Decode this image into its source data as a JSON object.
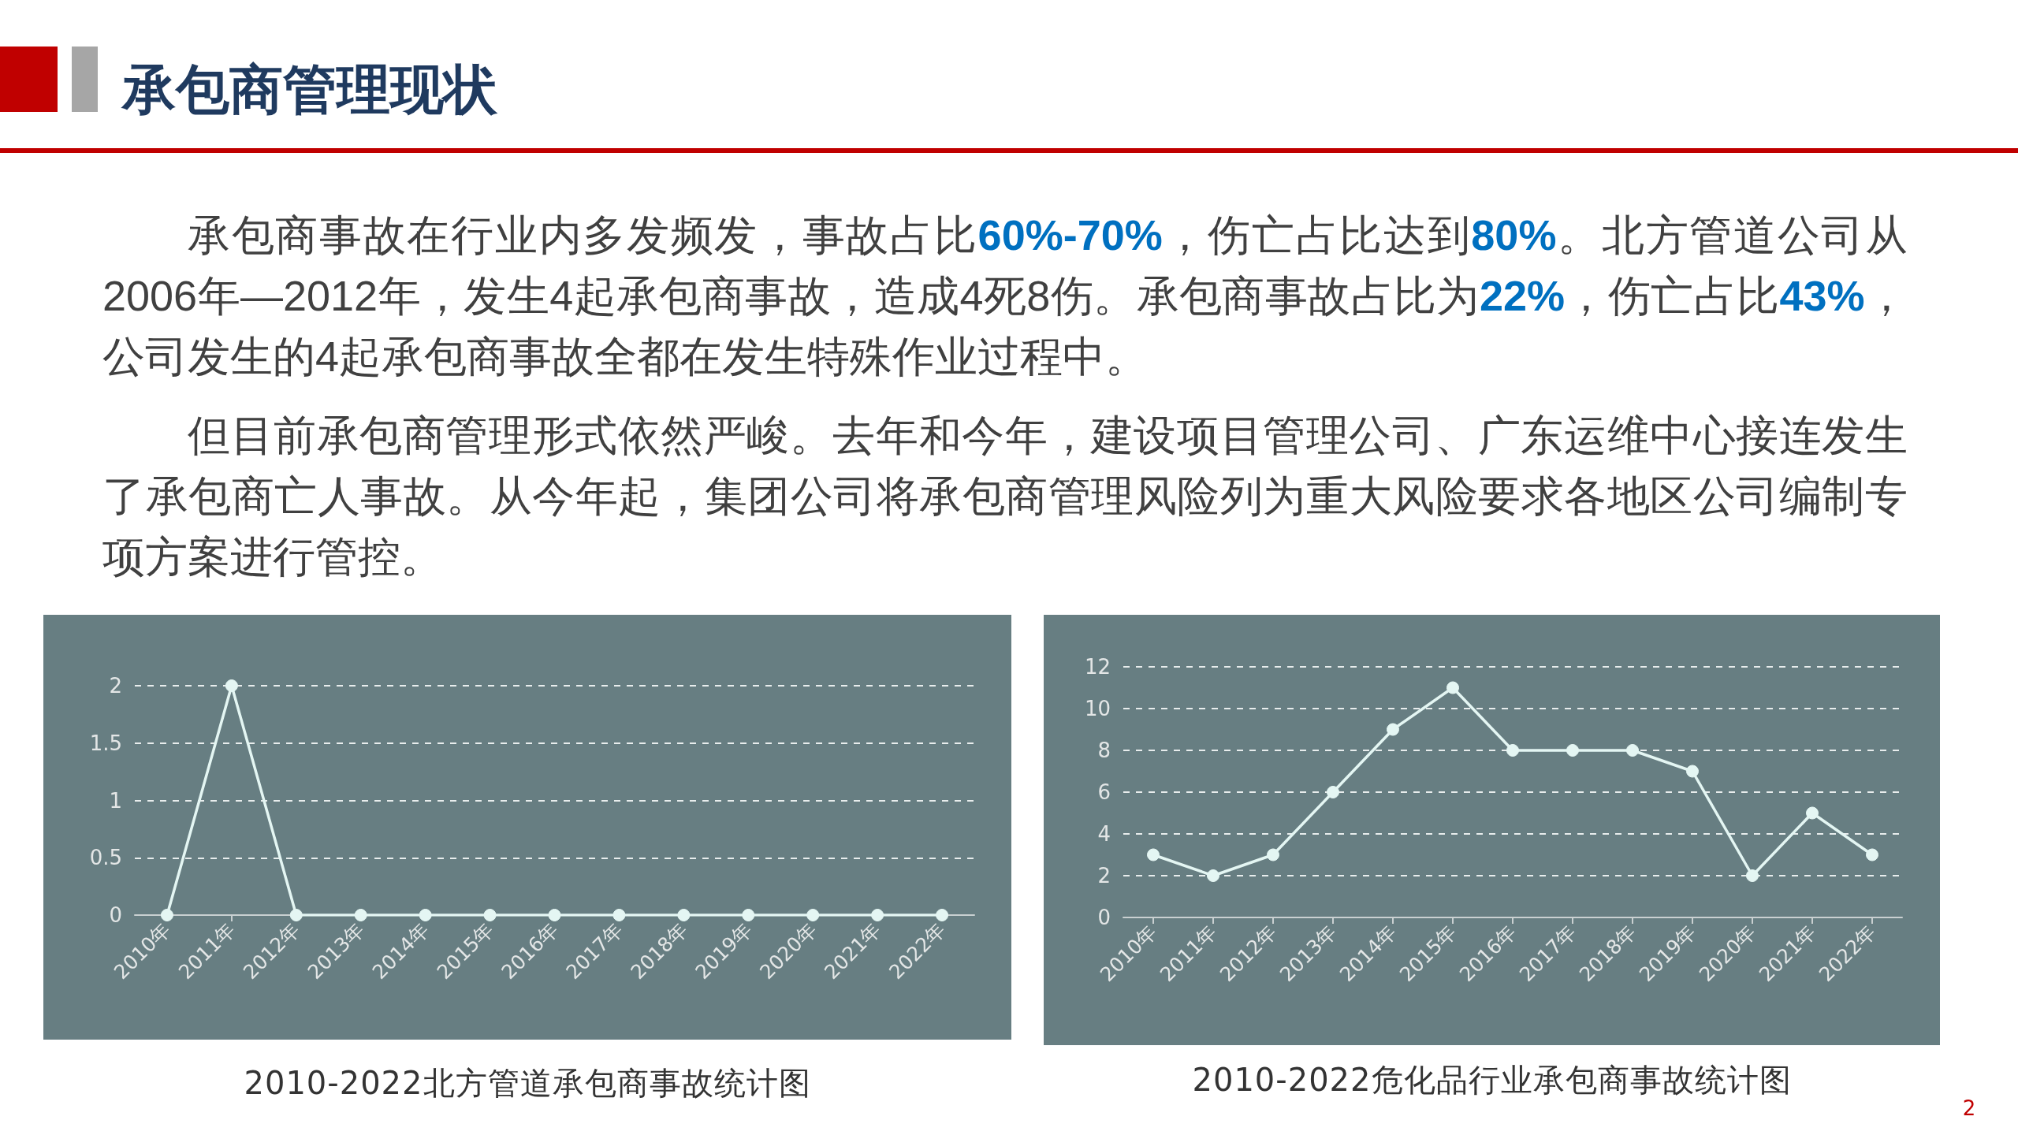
{
  "chart_data": [
    {
      "type": "other",
      "title": "承包商管理现状",
      "annotations": [
        "承包商事故在行业内多发频发，事故占比60%-70%，伤亡占比达到80%。北方管道公司从2006年—2012年，发生4起承包商事故，造成4死8伤。承包商事故占比为22%，伤亡占比43%，公司发生的4起承包商事故全都在发生特殊作业过程中。",
        "但目前承包商管理形式依然严峻。去年和今年，建设项目管理公司、广东运维中心接连发生了承包商亡人事故。从今年起，集团公司将承包商管理风险列为重大风险要求各地区公司编制专项方案进行管控。",
        "2"
      ]
    },
    {
      "type": "line",
      "title": "2010-2022北方管道承包商事故统计图",
      "categories": [
        "2010年",
        "2011年",
        "2012年",
        "2013年",
        "2014年",
        "2015年",
        "2016年",
        "2017年",
        "2018年",
        "2019年",
        "2020年",
        "2021年",
        "2022年"
      ],
      "values": [
        0,
        2,
        0,
        0,
        0,
        0,
        0,
        0,
        0,
        0,
        0,
        0,
        0
      ],
      "color": "#e4f6f3",
      "ylim": [
        0,
        2
      ],
      "yticks": [
        0,
        0.5,
        1,
        1.5,
        2
      ],
      "grid": "y",
      "marker": "circle",
      "line_style": "solid"
    },
    {
      "type": "line",
      "title": "2010-2022危化品行业承包商事故统计图",
      "categories": [
        "2010年",
        "2011年",
        "2012年",
        "2013年",
        "2014年",
        "2015年",
        "2016年",
        "2017年",
        "2018年",
        "2019年",
        "2020年",
        "2021年",
        "2022年"
      ],
      "values": [
        3,
        2,
        3,
        6,
        9,
        11,
        8,
        8,
        8,
        7,
        2,
        5,
        3
      ],
      "color": "#e4f6f3",
      "ylim": [
        0,
        12
      ],
      "yticks": [
        0,
        2,
        4,
        6,
        8,
        10,
        12
      ],
      "grid": "y",
      "marker": "circle",
      "line_style": "solid"
    }
  ]
}
